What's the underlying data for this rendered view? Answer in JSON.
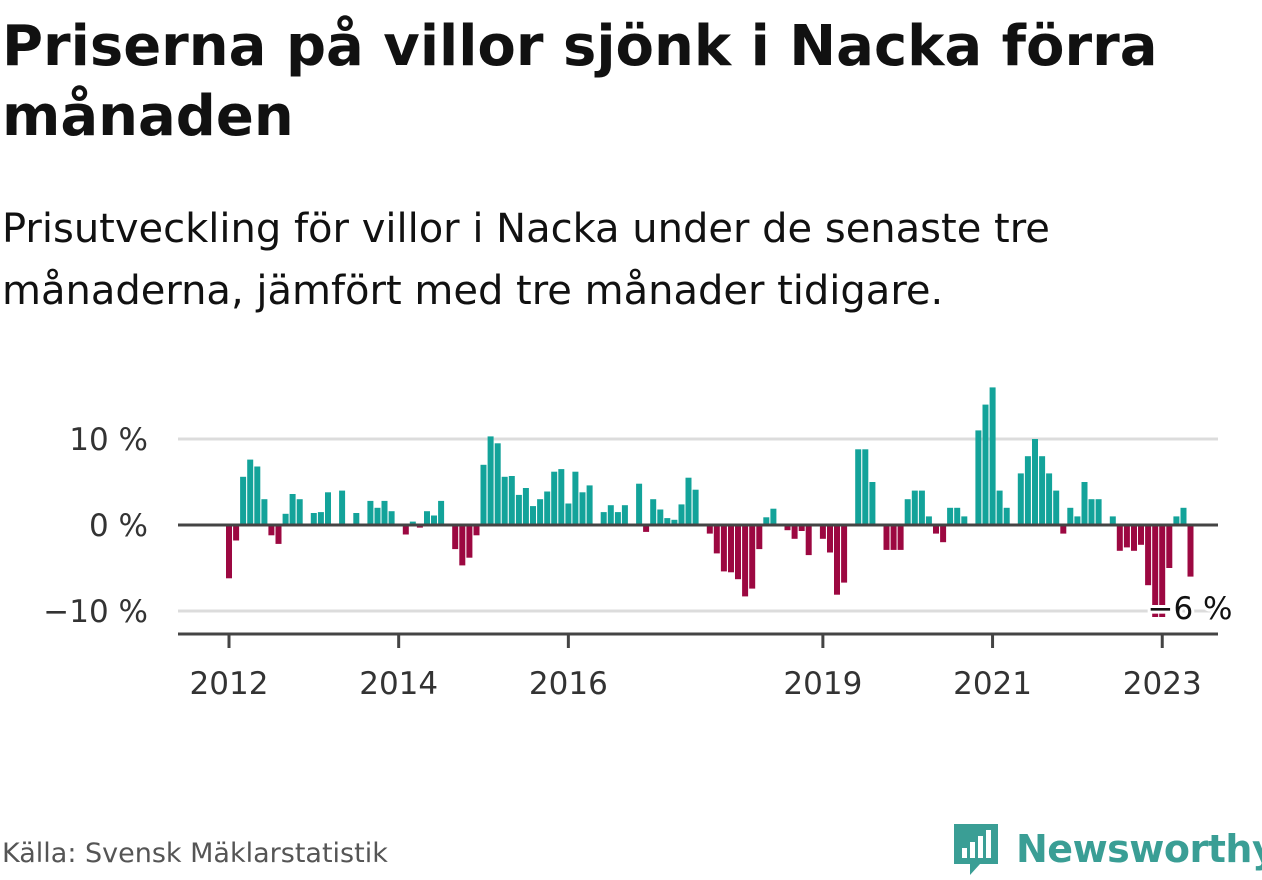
{
  "title": "Priserna på villor sjönk i Nacka förra månaden",
  "subtitle": "Prisutveckling för villor i Nacka under de senaste tre månaderna, jämfört med tre månader tidigare.",
  "source": "Källa: Svensk Mäklarstatistik",
  "brand": "Newsworthy",
  "colors": {
    "positive": "#13a39a",
    "negative": "#9c0841",
    "axis": "#444444",
    "grid": "#dcdcdc",
    "brand": "#3a9e95"
  },
  "chart_data": {
    "type": "bar",
    "title": "Priserna på villor sjönk i Nacka förra månaden",
    "subtitle": "Prisutveckling för villor i Nacka under de senaste tre månaderna, jämfört med tre månader tidigare.",
    "ylim": [
      -12.8,
      16.5
    ],
    "grid": true,
    "y_ticks": [
      {
        "value": 10,
        "label": "10 %"
      },
      {
        "value": 0,
        "label": "0 %"
      },
      {
        "value": -10,
        "label": "−10 %"
      }
    ],
    "x_ticks": [
      {
        "year": 2012,
        "label": "2012"
      },
      {
        "year": 2014,
        "label": "2014"
      },
      {
        "year": 2016,
        "label": "2016"
      },
      {
        "year": 2019,
        "label": "2019"
      },
      {
        "year": 2021,
        "label": "2021"
      },
      {
        "year": 2023,
        "label": "2023"
      }
    ],
    "series_start": "2012-01",
    "values": [
      -6.2,
      -1.8,
      5.6,
      7.6,
      6.8,
      3.0,
      -1.2,
      -2.2,
      1.3,
      3.6,
      3.0,
      0.0,
      1.4,
      1.5,
      3.8,
      0.0,
      4.0,
      0.0,
      1.4,
      0.0,
      2.8,
      2.0,
      2.8,
      1.6,
      0.0,
      -1.1,
      0.4,
      -0.3,
      1.6,
      1.1,
      2.8,
      0.0,
      -2.8,
      -4.7,
      -3.8,
      -1.2,
      7.0,
      10.3,
      9.5,
      5.6,
      5.7,
      3.5,
      4.3,
      2.2,
      3.0,
      3.9,
      6.2,
      6.5,
      2.5,
      6.2,
      3.8,
      4.6,
      0.0,
      1.5,
      2.3,
      1.5,
      2.3,
      0.0,
      4.8,
      -0.8,
      3.0,
      1.8,
      0.8,
      0.6,
      2.4,
      5.5,
      4.1,
      0.0,
      -1.0,
      -3.3,
      -5.4,
      -5.5,
      -6.3,
      -8.3,
      -7.4,
      -2.8,
      0.9,
      1.9,
      0.0,
      -0.6,
      -1.6,
      -0.7,
      -3.5,
      0.0,
      -1.6,
      -3.2,
      -8.1,
      -6.7,
      0.0,
      8.8,
      8.8,
      5.0,
      0.0,
      -2.9,
      -2.9,
      -2.9,
      3.0,
      4.0,
      4.0,
      1.0,
      -1.0,
      -2.0,
      2.0,
      2.0,
      1.0,
      0.0,
      11.0,
      14.0,
      16.0,
      4.0,
      2.0,
      0.0,
      6.0,
      8.0,
      10.0,
      8.0,
      6.0,
      4.0,
      -1.0,
      2.0,
      1.0,
      5.0,
      3.0,
      3.0,
      0.0,
      1.0,
      -3.0,
      -2.6,
      -3.0,
      -2.3,
      -7.0,
      -10.7,
      -10.7,
      -5.0,
      1.0,
      2.0,
      -6.0
    ],
    "last_value": -6,
    "last_value_label": "−6 %",
    "colors": {
      "positive": "#13a39a",
      "negative": "#9c0841"
    }
  }
}
